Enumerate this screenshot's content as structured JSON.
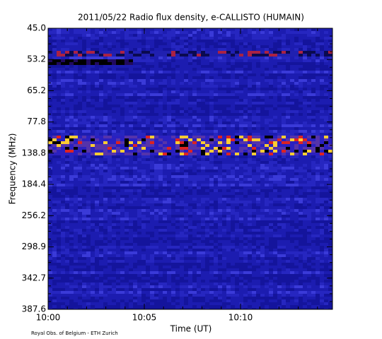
{
  "chart_data": {
    "type": "spectrogram",
    "title": "2011/05/22  Radio flux density, e-CALLISTO (HUMAIN)",
    "x_label": "Time (UT)",
    "y_label": "Frequency (MHz)",
    "xticks": [
      "10:00",
      "10:05",
      "10:10"
    ],
    "yticks": [
      {
        "value": 45,
        "label": "45.0"
      },
      {
        "value": 53.2,
        "label": "53.2"
      },
      {
        "value": 65.2,
        "label": "65.2"
      },
      {
        "value": 77.8,
        "label": "77.8"
      },
      {
        "value": 138.8,
        "label": "138.8"
      },
      {
        "value": 184.4,
        "label": "184.4"
      },
      {
        "value": 256.2,
        "label": "256.2"
      },
      {
        "value": 298.9,
        "label": "298.9"
      },
      {
        "value": 342.7,
        "label": "342.7"
      },
      {
        "value": 387.6,
        "label": "387.6"
      }
    ],
    "footer": "Royal Obs. of Belgium - ETH Zurich"
  }
}
